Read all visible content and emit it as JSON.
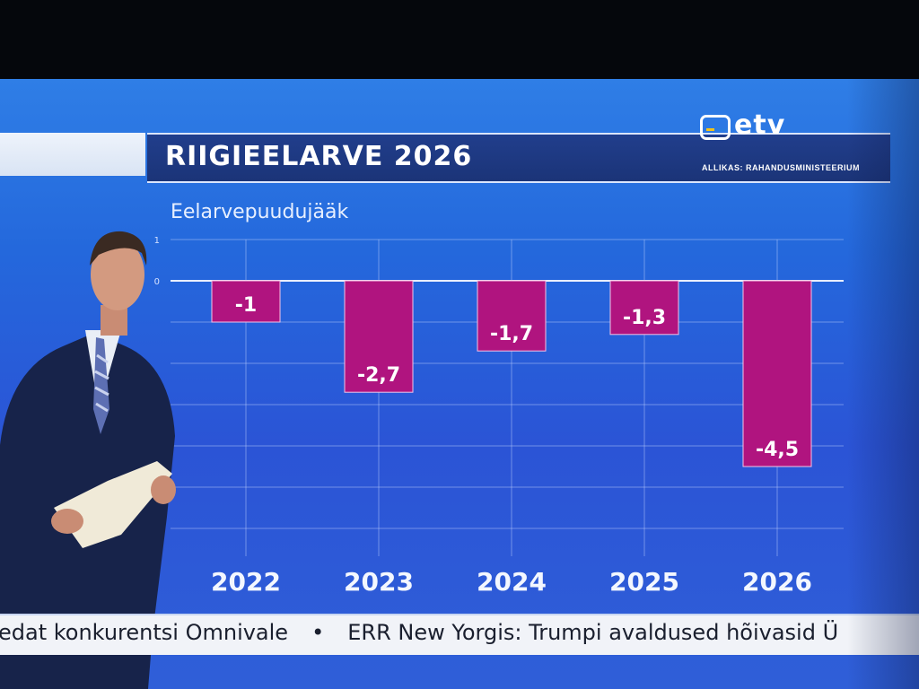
{
  "broadcast": {
    "title": "RIIGIEELARVE 2026",
    "source": "ALLIKAS: RAHANDUSMINISTEERIUM",
    "logo_text": "etv",
    "ticker": [
      "edat konkurentsi Omnivale",
      "ERR New Yorgis: Trumpi avaldused hõivasid Ü"
    ],
    "ticker_separator": "•"
  },
  "chart_data": {
    "type": "bar",
    "title": "Eelarvepuudujääk",
    "categories": [
      "2022",
      "2023",
      "2024",
      "2025",
      "2026"
    ],
    "values": [
      -1,
      -2.7,
      -1.7,
      -1.3,
      -4.5
    ],
    "value_labels": [
      "-1",
      "-2,7",
      "-1,7",
      "-1,3",
      "-4,5"
    ],
    "yticks": [
      "1",
      "0"
    ],
    "ylim": [
      -6.5,
      1
    ],
    "grid": true,
    "bar_color": "#b0147f"
  }
}
